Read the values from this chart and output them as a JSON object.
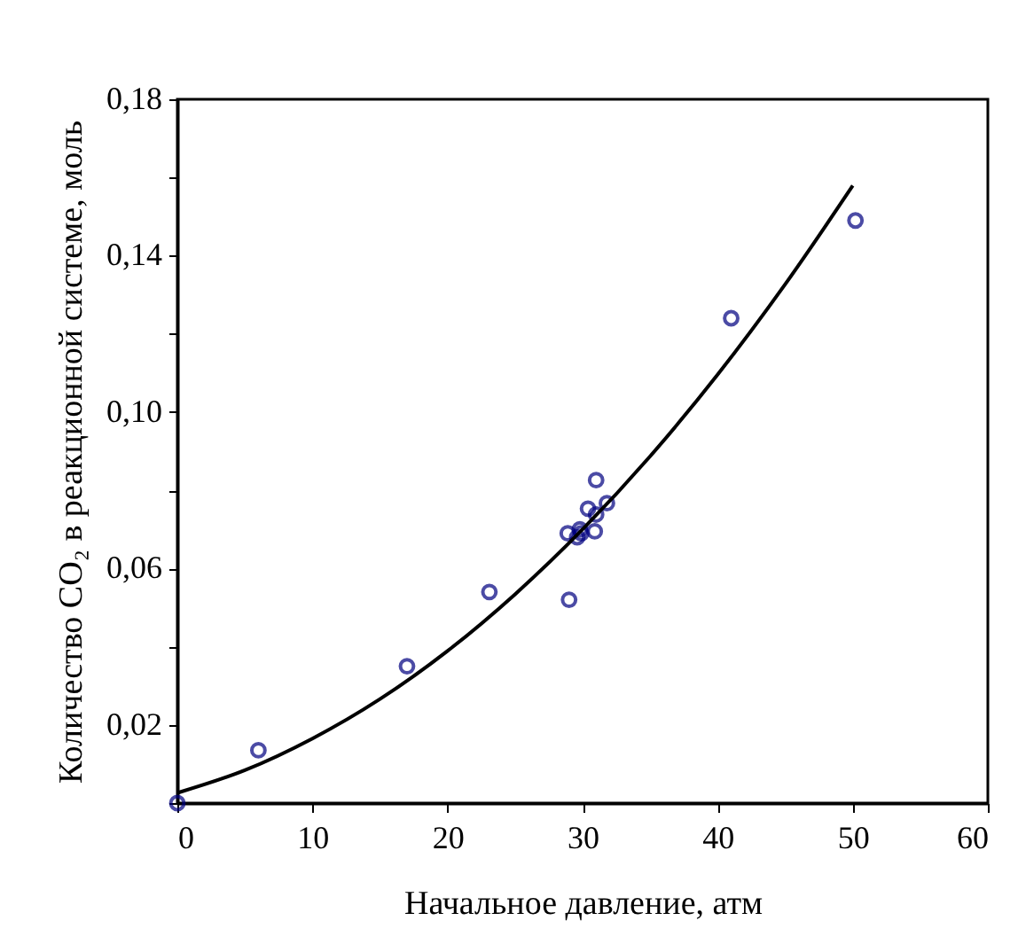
{
  "chart_data": {
    "type": "scatter",
    "xlabel": "Начальное давление, атм",
    "ylabel": "Количество CO₂ в реакционной системе, моль",
    "xlim": [
      0,
      60
    ],
    "xticks": [
      0,
      10,
      20,
      30,
      40,
      50,
      60
    ],
    "ylim": [
      0,
      0.18
    ],
    "yticks": [
      {
        "value": 0,
        "label": null
      },
      {
        "value": 0.02,
        "label": "0,02"
      },
      {
        "value": 0.04,
        "label": null
      },
      {
        "value": 0.06,
        "label": "0,06"
      },
      {
        "value": 0.08,
        "label": null
      },
      {
        "value": 0.1,
        "label": "0,10"
      },
      {
        "value": 0.12,
        "label": null
      },
      {
        "value": 0.14,
        "label": "0,14"
      },
      {
        "value": 0.16,
        "label": null
      },
      {
        "value": 0.18,
        "label": "0,18"
      }
    ],
    "grid": false,
    "series": [
      {
        "type": "scatter",
        "color": "#000080",
        "marker": "circle",
        "x": [
          0,
          6.0,
          17.0,
          23.1,
          29.0,
          28.9,
          29.6,
          29.9,
          29.8,
          30.9,
          30.4,
          31.0,
          31.8,
          31.0,
          41.0,
          50.2
        ],
        "values": [
          0,
          0.0135,
          0.035,
          0.054,
          0.052,
          0.069,
          0.068,
          0.069,
          0.07,
          0.0695,
          0.0753,
          0.0738,
          0.0767,
          0.0826,
          0.124,
          0.149
        ]
      },
      {
        "type": "line",
        "color": "#000000",
        "marker": "none",
        "line_style": "solid",
        "x": [
          0,
          5,
          10,
          15,
          20,
          25,
          30,
          35,
          40,
          45,
          50
        ],
        "values": [
          0.0026,
          0.0084,
          0.0165,
          0.0266,
          0.0389,
          0.0534,
          0.07,
          0.0887,
          0.1096,
          0.1327,
          0.1579
        ]
      }
    ]
  }
}
